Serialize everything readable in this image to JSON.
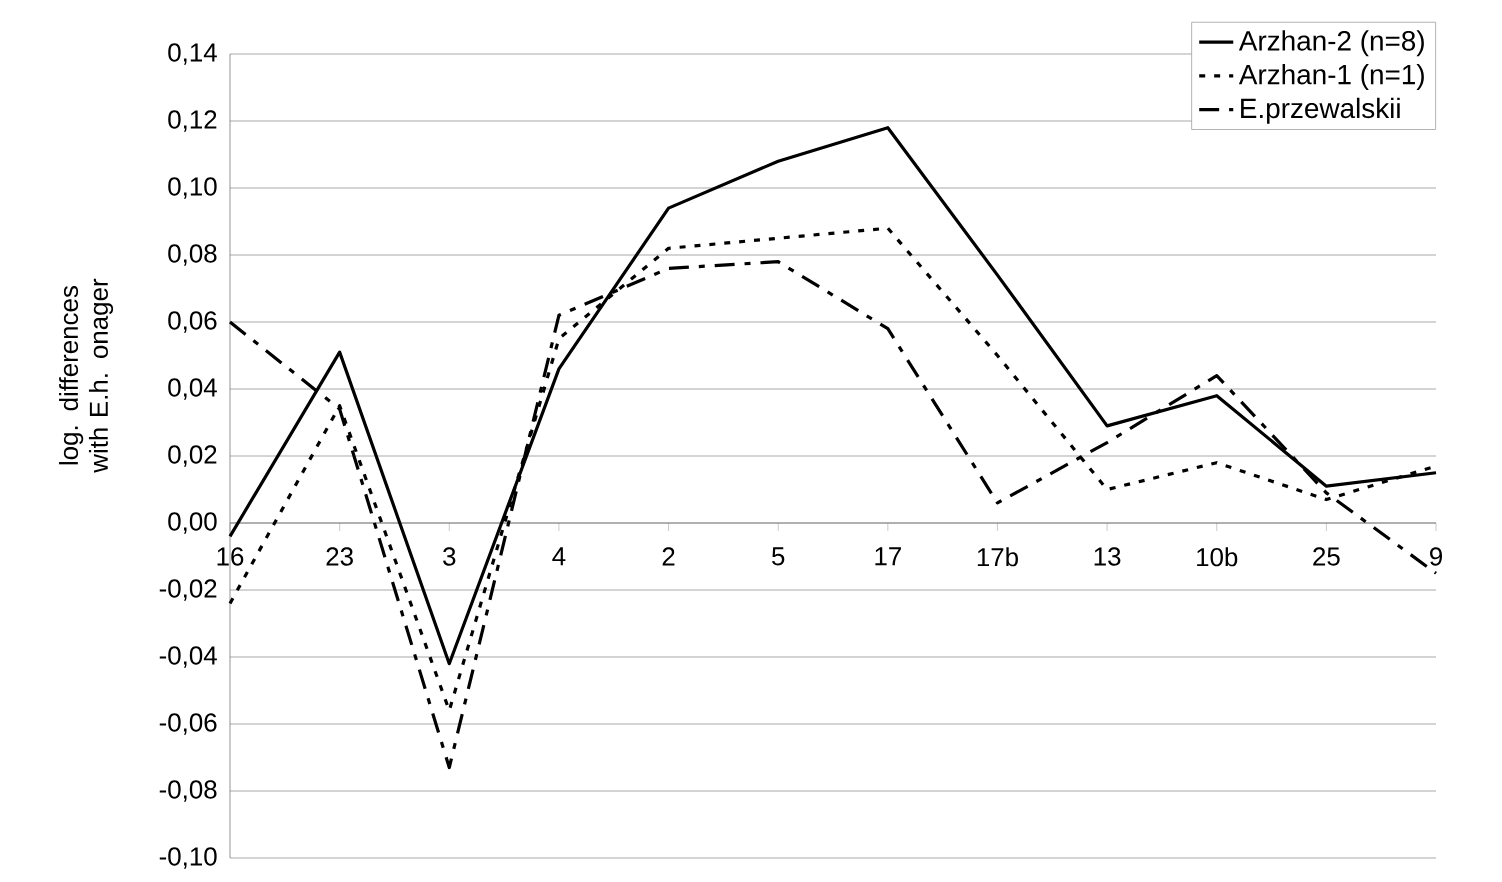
{
  "chart_data": {
    "type": "line",
    "ylabel": "log. differences with E.h. onager",
    "categories": [
      "16",
      "23",
      "3",
      "4",
      "2",
      "5",
      "17",
      "17b",
      "13",
      "10b",
      "25",
      "9"
    ],
    "series": [
      {
        "name": "Arzhan-2 (n=8)",
        "color": "#000000",
        "line_style": "solid",
        "values": [
          -0.004,
          0.051,
          -0.042,
          0.046,
          0.094,
          0.108,
          0.118,
          0.074,
          0.029,
          0.038,
          0.011,
          0.015
        ]
      },
      {
        "name": "Arzhan-1 (n=1)",
        "color": "#000000",
        "line_style": "dotted",
        "values": [
          -0.024,
          0.035,
          -0.056,
          0.055,
          0.082,
          0.085,
          0.088,
          0.05,
          0.01,
          0.018,
          0.007,
          0.017
        ]
      },
      {
        "name": "E.przewalskii",
        "color": "#000000",
        "line_style": "dashed",
        "values": [
          0.06,
          0.034,
          -0.073,
          0.062,
          0.076,
          0.078,
          0.058,
          0.006,
          0.024,
          0.044,
          0.009,
          -0.015
        ]
      }
    ],
    "ylim": [
      -0.1,
      0.14
    ],
    "yticks": [
      {
        "value": -0.1,
        "label": "-0,10"
      },
      {
        "value": -0.08,
        "label": "-0,08"
      },
      {
        "value": -0.06,
        "label": "-0,06"
      },
      {
        "value": -0.04,
        "label": "-0,04"
      },
      {
        "value": -0.02,
        "label": "-0,02"
      },
      {
        "value": 0.0,
        "label": "0,00"
      },
      {
        "value": 0.02,
        "label": "0,02"
      },
      {
        "value": 0.04,
        "label": "0,04"
      },
      {
        "value": 0.06,
        "label": "0,06"
      },
      {
        "value": 0.08,
        "label": "0,08"
      },
      {
        "value": 0.1,
        "label": "0,10"
      },
      {
        "value": 0.12,
        "label": "0,12"
      },
      {
        "value": 0.14,
        "label": "0,14"
      }
    ],
    "grid": "y",
    "legend": "top right",
    "marker": "none"
  }
}
